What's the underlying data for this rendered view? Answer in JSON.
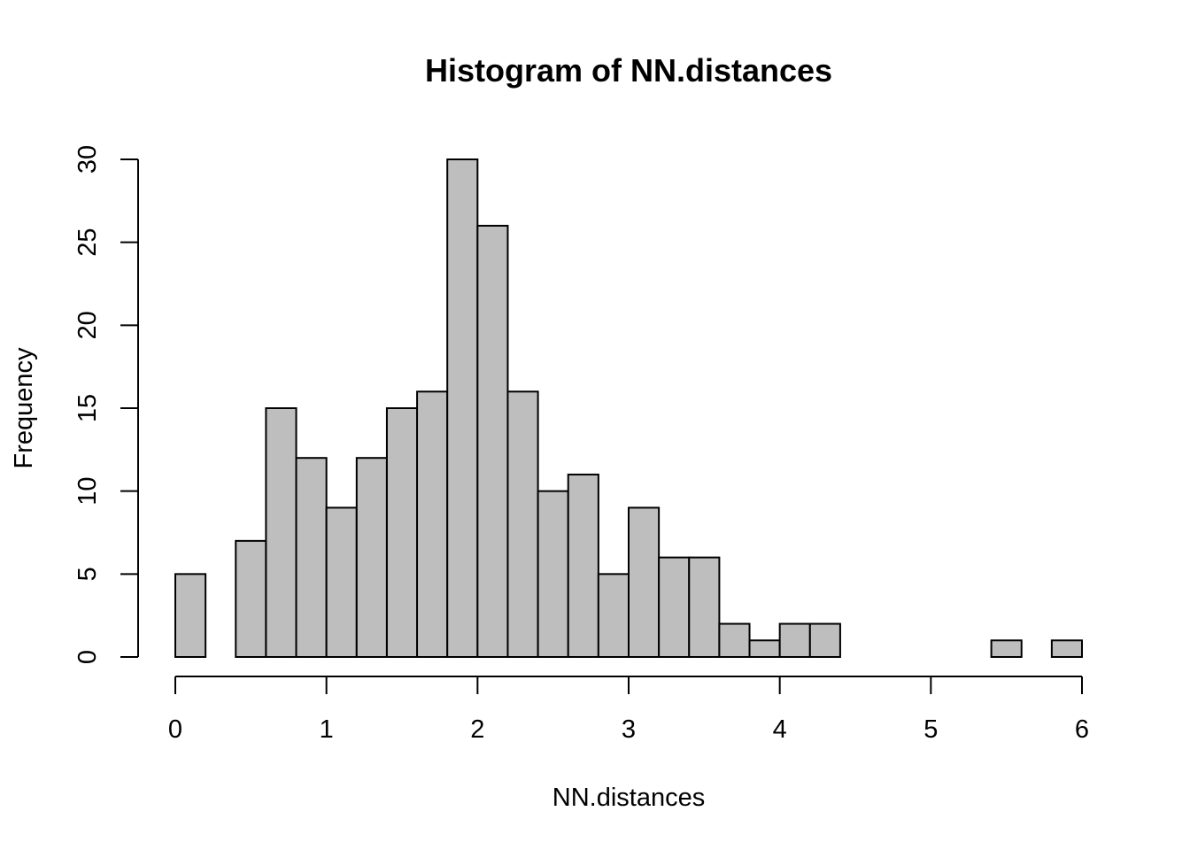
{
  "chart_data": {
    "type": "bar",
    "title": "Histogram of NN.distances",
    "xlabel": "NN.distances",
    "ylabel": "Frequency",
    "bar_color": "#bebebe",
    "border_color": "#000000",
    "bin_edges": [
      0,
      0.2,
      0.4,
      0.6,
      0.8,
      1.0,
      1.2,
      1.4,
      1.6,
      1.8,
      2.0,
      2.2,
      2.4,
      2.6,
      2.8,
      3.0,
      3.2,
      3.4,
      3.6,
      3.8,
      4.0,
      4.2,
      4.4,
      4.6,
      4.8,
      5.0,
      5.2,
      5.4,
      5.6,
      5.8,
      6.0
    ],
    "counts": [
      5,
      0,
      7,
      15,
      12,
      9,
      12,
      15,
      16,
      30,
      26,
      16,
      10,
      11,
      5,
      9,
      6,
      6,
      2,
      1,
      2,
      2,
      0,
      0,
      0,
      0,
      0,
      1,
      0,
      1
    ],
    "xlim": [
      0,
      6
    ],
    "ylim": [
      0,
      30
    ],
    "x_ticks": [
      0,
      1,
      2,
      3,
      4,
      5,
      6
    ],
    "y_ticks": [
      0,
      5,
      10,
      15,
      20,
      25,
      30
    ],
    "grid": false,
    "legend": "none"
  }
}
